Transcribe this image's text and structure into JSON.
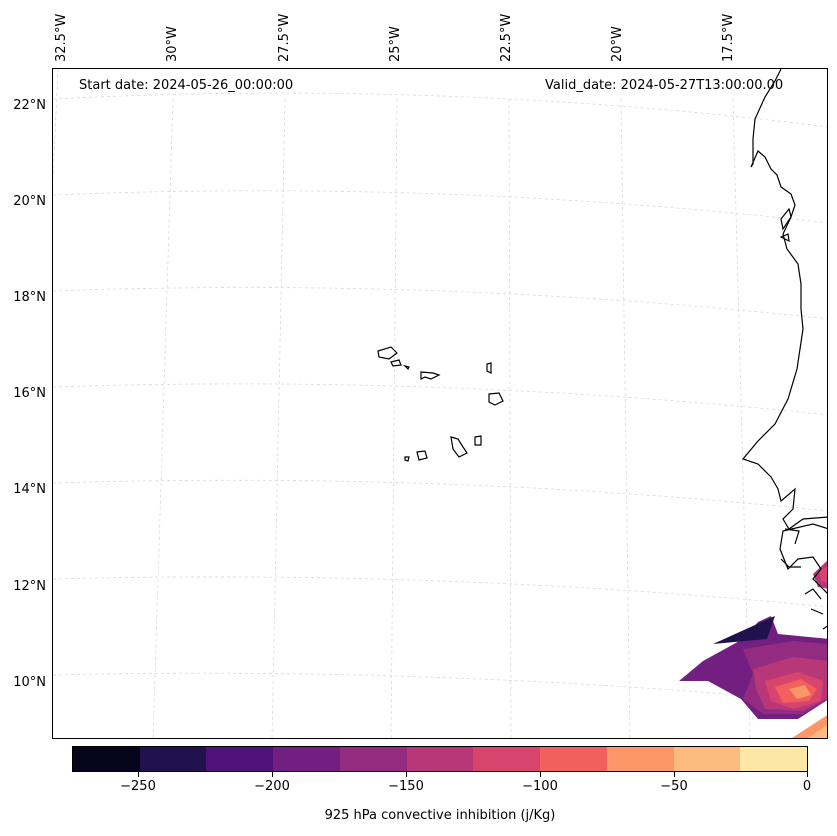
{
  "map": {
    "start_date": "Start date: 2024-05-26_00:00:00",
    "valid_date": "Valid_date: 2024-05-27T13:00:00.00",
    "lon_labels": [
      "32.5°W",
      "30°W",
      "27.5°W",
      "25°W",
      "22.5°W",
      "20°W",
      "17.5°W"
    ],
    "lat_labels": [
      "22°N",
      "20°N",
      "18°N",
      "16°N",
      "14°N",
      "12°N",
      "10°N"
    ],
    "gridlines": true,
    "land_color": "#ffffff",
    "coastline_color": "#000000"
  },
  "colorbar": {
    "label": "925 hPa convective inhibition (j/Kg)",
    "tick_labels": [
      "−250",
      "−200",
      "−150",
      "−100",
      "−50",
      "0"
    ],
    "colors": [
      "#07051c",
      "#21114d",
      "#4f127b",
      "#721f81",
      "#932b80",
      "#b73779",
      "#d8456c",
      "#f1605d",
      "#fd9668",
      "#febb81",
      "#fde7a7"
    ],
    "range": [
      -275,
      0
    ]
  }
}
